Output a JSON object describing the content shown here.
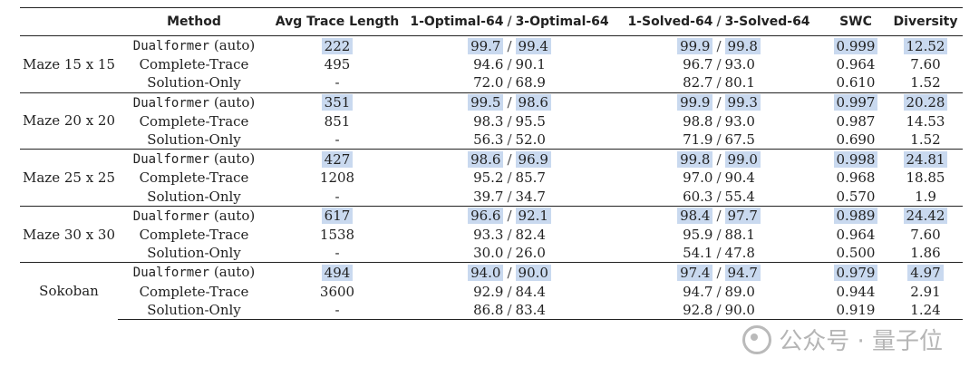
{
  "headers": {
    "group": "",
    "method": "Method",
    "avg_trace": "Avg Trace Length",
    "optimal": [
      "1-Optimal-64",
      "3-Optimal-64"
    ],
    "solved": [
      "1-Solved-64",
      "3-Solved-64"
    ],
    "swc": "SWC",
    "diversity": "Diversity"
  },
  "groups": [
    {
      "label": "Maze 15 x 15",
      "rows": [
        {
          "method_name": "Dualformer",
          "method_suffix": "(auto)",
          "avg": "222",
          "opt1": "99.7",
          "opt3": "99.4",
          "sol1": "99.9",
          "sol3": "99.8",
          "swc": "0.999",
          "div": "12.52",
          "highlight": true
        },
        {
          "method_name": "Complete-Trace",
          "method_suffix": "",
          "avg": "495",
          "opt1": "94.6",
          "opt3": "90.1",
          "sol1": "96.7",
          "sol3": "93.0",
          "swc": "0.964",
          "div": "7.60",
          "highlight": false
        },
        {
          "method_name": "Solution-Only",
          "method_suffix": "",
          "avg": "-",
          "opt1": "72.0",
          "opt3": "68.9",
          "sol1": "82.7",
          "sol3": "80.1",
          "swc": "0.610",
          "div": "1.52",
          "highlight": false
        }
      ]
    },
    {
      "label": "Maze 20 x 20",
      "rows": [
        {
          "method_name": "Dualformer",
          "method_suffix": "(auto)",
          "avg": "351",
          "opt1": "99.5",
          "opt3": "98.6",
          "sol1": "99.9",
          "sol3": "99.3",
          "swc": "0.997",
          "div": "20.28",
          "highlight": true
        },
        {
          "method_name": "Complete-Trace",
          "method_suffix": "",
          "avg": "851",
          "opt1": "98.3",
          "opt3": "95.5",
          "sol1": "98.8",
          "sol3": "93.0",
          "swc": "0.987",
          "div": "14.53",
          "highlight": false
        },
        {
          "method_name": "Solution-Only",
          "method_suffix": "",
          "avg": "-",
          "opt1": "56.3",
          "opt3": "52.0",
          "sol1": "71.9",
          "sol3": "67.5",
          "swc": "0.690",
          "div": "1.52",
          "highlight": false
        }
      ]
    },
    {
      "label": "Maze 25 x 25",
      "rows": [
        {
          "method_name": "Dualformer",
          "method_suffix": "(auto)",
          "avg": "427",
          "opt1": "98.6",
          "opt3": "96.9",
          "sol1": "99.8",
          "sol3": "99.0",
          "swc": "0.998",
          "div": "24.81",
          "highlight": true
        },
        {
          "method_name": "Complete-Trace",
          "method_suffix": "",
          "avg": "1208",
          "opt1": "95.2",
          "opt3": "85.7",
          "sol1": "97.0",
          "sol3": "90.4",
          "swc": "0.968",
          "div": "18.85",
          "highlight": false
        },
        {
          "method_name": "Solution-Only",
          "method_suffix": "",
          "avg": "-",
          "opt1": "39.7",
          "opt3": "34.7",
          "sol1": "60.3",
          "sol3": "55.4",
          "swc": "0.570",
          "div": "1.9",
          "highlight": false
        }
      ]
    },
    {
      "label": "Maze 30 x 30",
      "rows": [
        {
          "method_name": "Dualformer",
          "method_suffix": "(auto)",
          "avg": "617",
          "opt1": "96.6",
          "opt3": "92.1",
          "sol1": "98.4",
          "sol3": "97.7",
          "swc": "0.989",
          "div": "24.42",
          "highlight": true
        },
        {
          "method_name": "Complete-Trace",
          "method_suffix": "",
          "avg": "1538",
          "opt1": "93.3",
          "opt3": "82.4",
          "sol1": "95.9",
          "sol3": "88.1",
          "swc": "0.964",
          "div": "7.60",
          "highlight": false
        },
        {
          "method_name": "Solution-Only",
          "method_suffix": "",
          "avg": "-",
          "opt1": "30.0",
          "opt3": "26.0",
          "sol1": "54.1",
          "sol3": "47.8",
          "swc": "0.500",
          "div": "1.86",
          "highlight": false
        }
      ]
    },
    {
      "label": "Sokoban",
      "rows": [
        {
          "method_name": "Dualformer",
          "method_suffix": "(auto)",
          "avg": "494",
          "opt1": "94.0",
          "opt3": "90.0",
          "sol1": "97.4",
          "sol3": "94.7",
          "swc": "0.979",
          "div": "4.97",
          "highlight": true
        },
        {
          "method_name": "Complete-Trace",
          "method_suffix": "",
          "avg": "3600",
          "opt1": "92.9",
          "opt3": "84.4",
          "sol1": "94.7",
          "sol3": "89.0",
          "swc": "0.944",
          "div": "2.91",
          "highlight": false
        },
        {
          "method_name": "Solution-Only",
          "method_suffix": "",
          "avg": "-",
          "opt1": "86.8",
          "opt3": "83.4",
          "sol1": "92.8",
          "sol3": "90.0",
          "swc": "0.919",
          "div": "1.24",
          "highlight": false
        }
      ]
    }
  ],
  "watermark": "公众号 · 量子位",
  "colors": {
    "highlight": "#c9d9ef",
    "text": "#222222",
    "rule": "#222222"
  }
}
